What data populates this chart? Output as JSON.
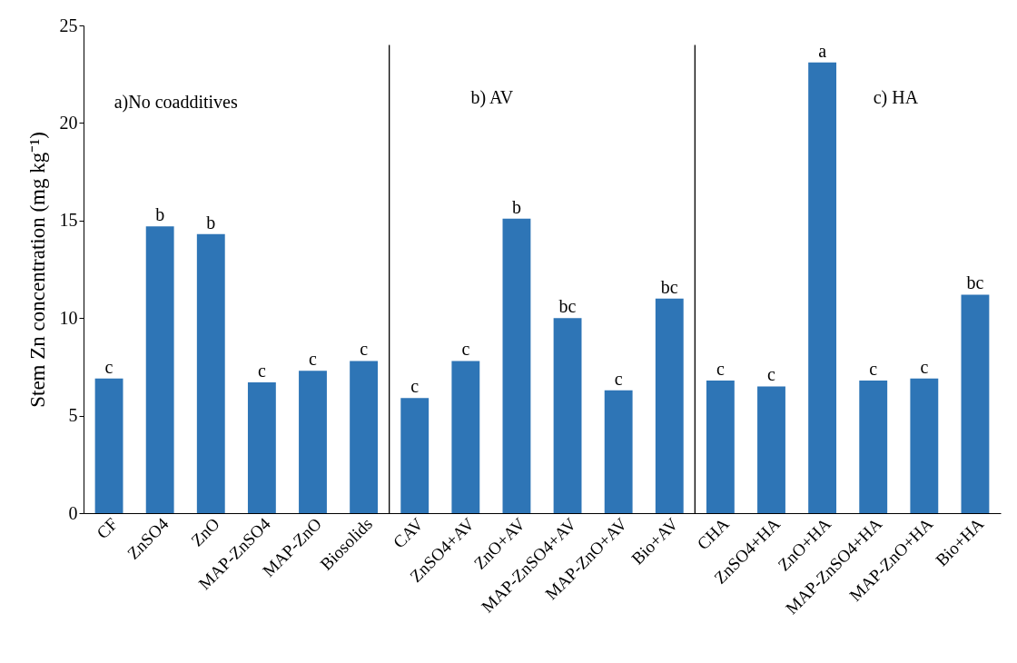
{
  "chart_data": {
    "type": "bar",
    "ylabel": "Stem Zn concentration (mg kg⁻¹)",
    "categories": [
      "CF",
      "ZnSO4",
      "ZnO",
      "MAP-ZnSO4",
      "MAP-ZnO",
      "Biosolids",
      "CAV",
      "ZnSO4+AV",
      "ZnO+AV",
      "MAP-ZnSO4+AV",
      "MAP-ZnO+AV",
      "Bio+AV",
      "CHA",
      "ZnSO4+HA",
      "ZnO+HA",
      "MAP-ZnSO4+HA",
      "MAP-ZnO+HA",
      "Bio+HA"
    ],
    "values": [
      6.9,
      14.7,
      14.3,
      6.7,
      7.3,
      7.8,
      5.9,
      7.8,
      15.1,
      10.0,
      6.3,
      11.0,
      6.8,
      6.5,
      23.1,
      6.8,
      6.9,
      11.2
    ],
    "value_labels": [
      "c",
      "b",
      "b",
      "c",
      "c",
      "c",
      "c",
      "c",
      "b",
      "bc",
      "c",
      "bc",
      "c",
      "c",
      "a",
      "c",
      "c",
      "bc"
    ],
    "color": "#2e75b6",
    "ylim": [
      0,
      25
    ],
    "yticks": [
      0,
      5,
      10,
      15,
      20,
      25
    ],
    "grid": false,
    "annotations": [
      "a)No coadditives",
      "b) AV",
      "c) HA"
    ]
  }
}
